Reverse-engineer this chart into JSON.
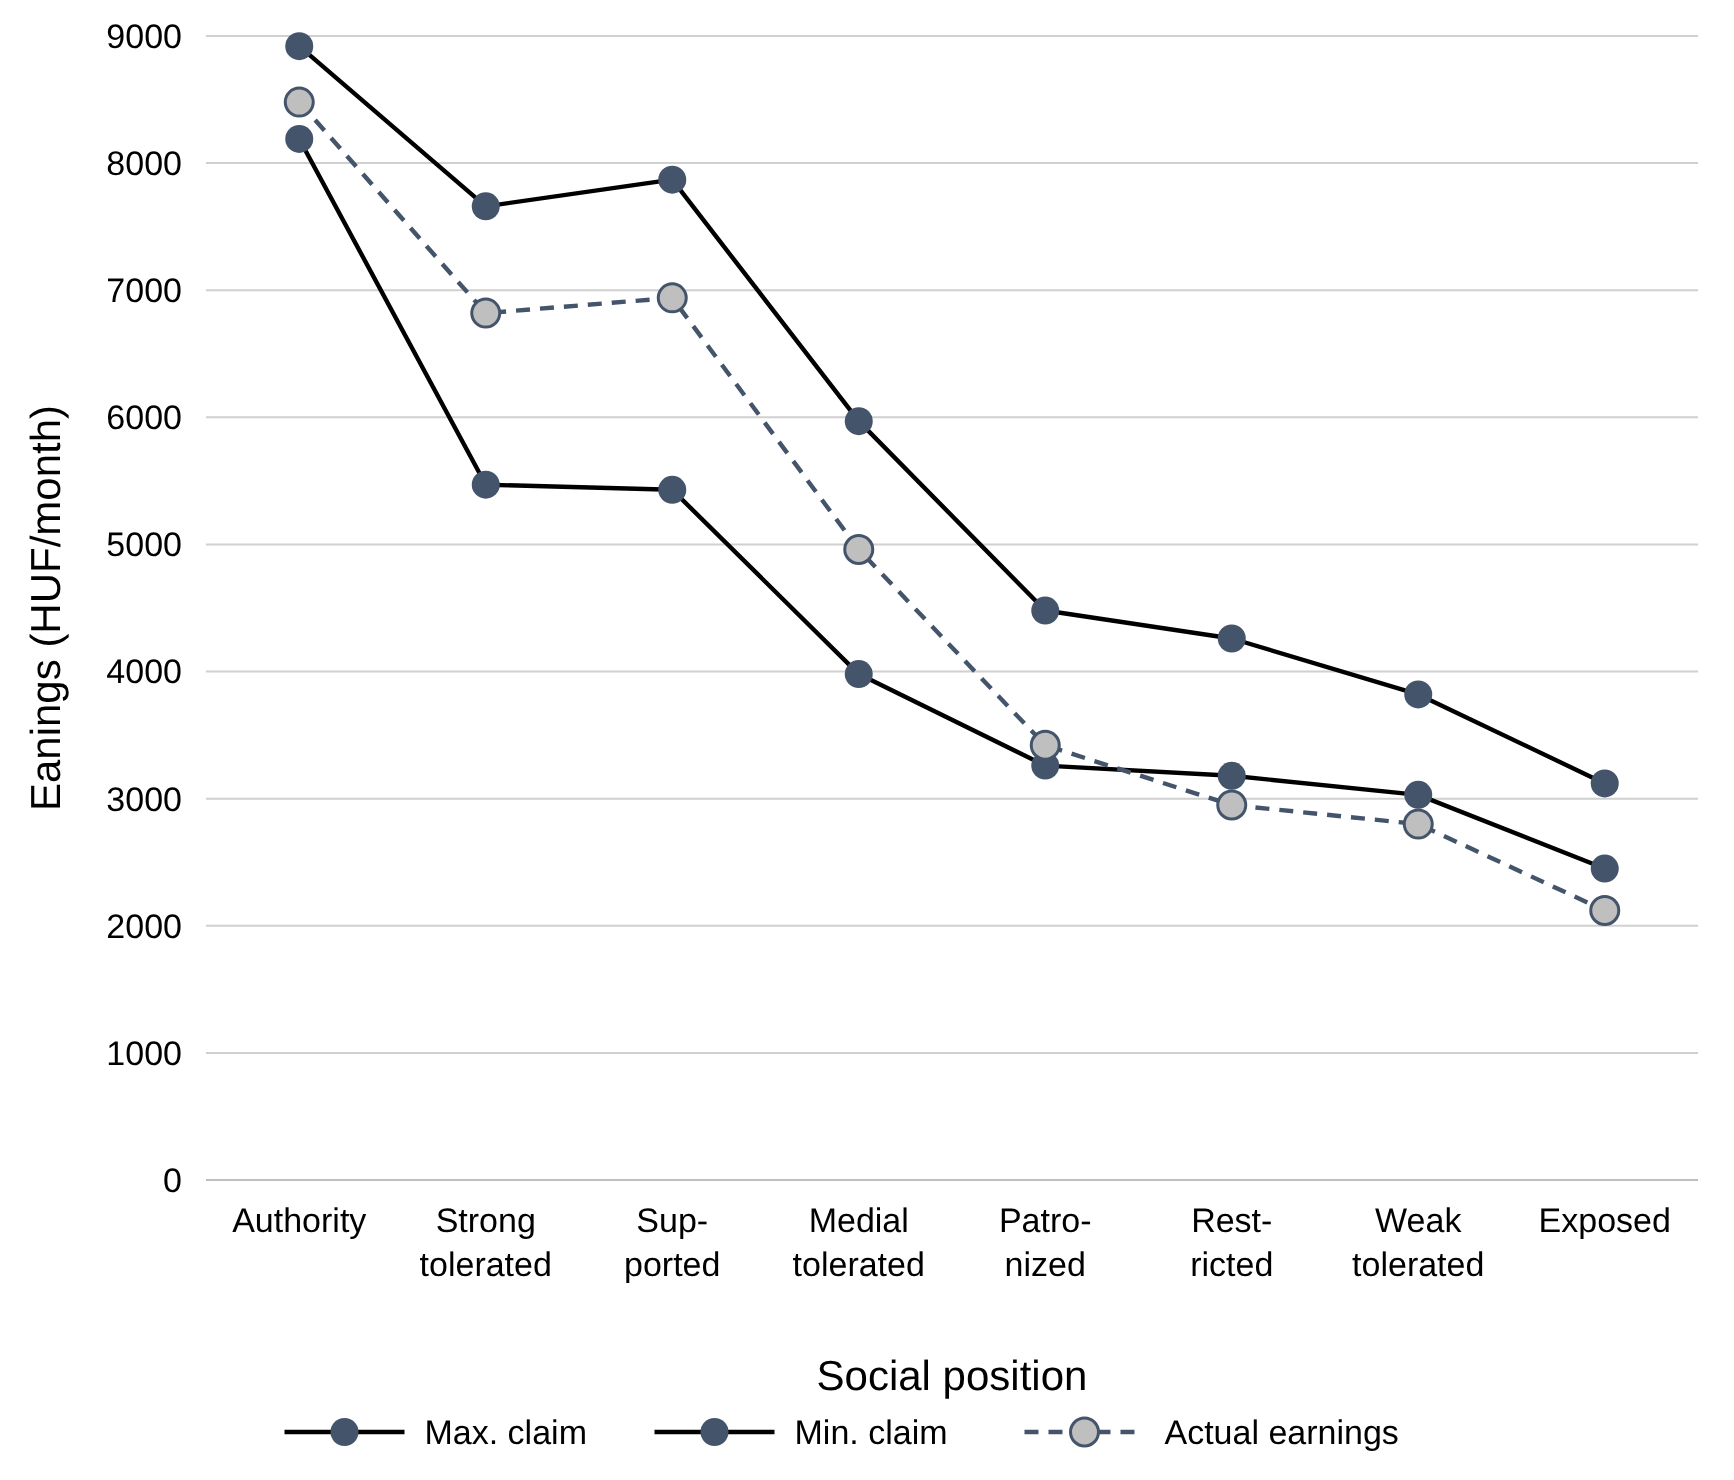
{
  "chart_data": {
    "type": "line",
    "xlabel": "Social position",
    "ylabel": "Eanings (HUF/month)",
    "categories": [
      "Authority",
      "Strong\ntolerated",
      "Sup-\nported",
      "Medial\ntolerated",
      "Patro-\nnized",
      "Rest-\nricted",
      "Weak\ntolerated",
      "Exposed"
    ],
    "series": [
      {
        "name": "Max. claim",
        "color": "#44546a",
        "line_style": "solid",
        "values": [
          8920,
          7660,
          7870,
          5970,
          4480,
          4260,
          3820,
          3120
        ]
      },
      {
        "name": "Min. claim",
        "color": "#44546a",
        "line_style": "solid",
        "values": [
          8190,
          5470,
          5430,
          3980,
          3260,
          3180,
          3030,
          2450
        ]
      },
      {
        "name": "Actual earnings",
        "color": "#bfbfbf",
        "line_style": "dashed",
        "values": [
          8480,
          6820,
          6940,
          4960,
          3420,
          2950,
          2800,
          2120
        ]
      }
    ],
    "ylim": [
      0,
      9000
    ],
    "yticks": [
      0,
      1000,
      2000,
      3000,
      4000,
      5000,
      6000,
      7000,
      8000,
      9000
    ],
    "grid": "y",
    "legend": "bottom",
    "marker": "circle"
  }
}
